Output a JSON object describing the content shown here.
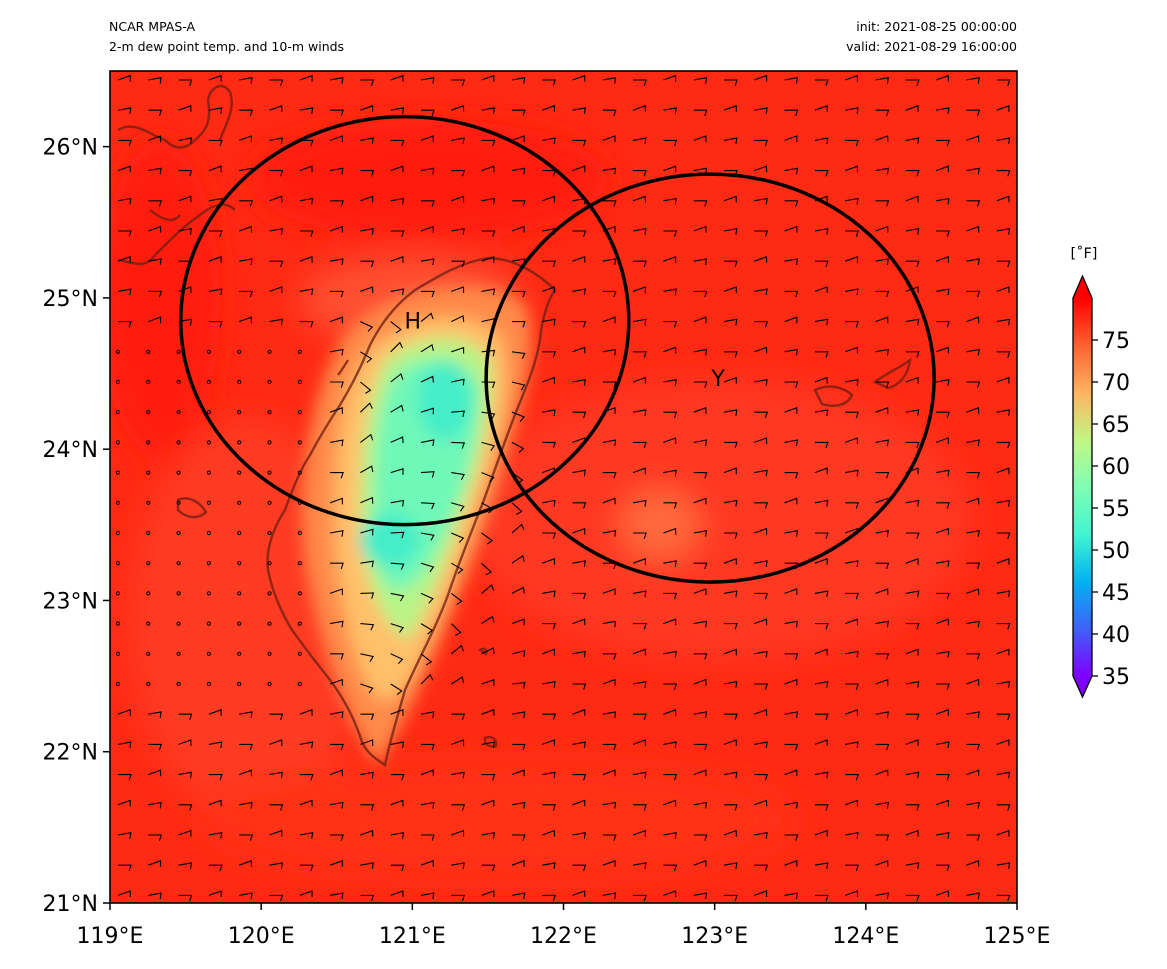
{
  "header": {
    "model": "NCAR MPAS-A",
    "field": "2-m dew point temp. and 10-m winds",
    "init": "init: 2021-08-25 00:00:00",
    "valid": "valid: 2021-08-29 16:00:00"
  },
  "chart_data": {
    "type": "heatmap",
    "title": "2-m dew point temp. and 10-m winds",
    "xlim": [
      119,
      125
    ],
    "ylim": [
      21,
      26.5
    ],
    "x_ticks": [
      "119°E",
      "120°E",
      "121°E",
      "122°E",
      "123°E",
      "124°E",
      "125°E"
    ],
    "x_tick_values": [
      119,
      120,
      121,
      122,
      123,
      124,
      125
    ],
    "y_ticks": [
      "21°N",
      "22°N",
      "23°N",
      "24°N",
      "25°N",
      "26°N"
    ],
    "y_tick_values": [
      21,
      22,
      23,
      24,
      25,
      26
    ],
    "colorbar": {
      "label": "[˚F]",
      "min": 35,
      "max": 80,
      "ticks": [
        "35",
        "40",
        "45",
        "50",
        "55",
        "60",
        "65",
        "70",
        "75"
      ],
      "tick_values": [
        35,
        40,
        45,
        50,
        55,
        60,
        65,
        70,
        75
      ],
      "extend": "both",
      "colormap": "rainbow",
      "colors": [
        "#7f00ff",
        "#3f61fa",
        "#01b2f2",
        "#41f6d0",
        "#7ffeb3",
        "#c2f684",
        "#feb361",
        "#fe6131",
        "#ff0000"
      ]
    },
    "field_summary": {
      "background_dewpoint_f": 77,
      "taiwan_interior_min_f": 52,
      "colors": {
        "background": "#ff2a14",
        "interior": "#44eec8",
        "mid": "#ffb060"
      }
    },
    "circles": [
      {
        "label": "H",
        "center_lon": 120.95,
        "center_lat": 24.85
      },
      {
        "label": "Y",
        "center_lon": 122.97,
        "center_lat": 24.47
      }
    ],
    "wind_barbs": "10-m wind barbs (mostly westerly to southwesterly; near-calm circles over western Taiwan Strait)"
  }
}
